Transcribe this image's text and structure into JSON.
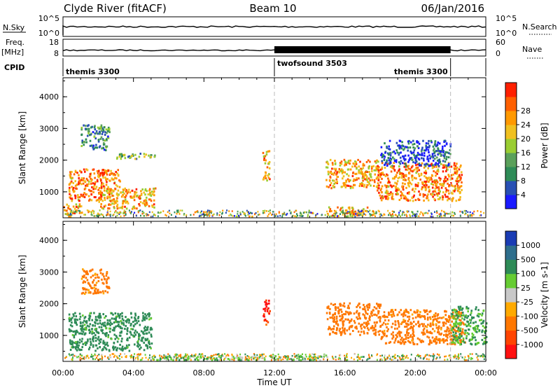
{
  "header": {
    "station": "Clyde River (fitACF)",
    "beam": "Beam 10",
    "date": "06/Jan/2016"
  },
  "strip_top": {
    "left_label": "N.Sky",
    "right_label": "N.Search",
    "left_ticks": [
      "10^5",
      "10^0"
    ],
    "right_ticks": [
      "10^5",
      "10^0"
    ]
  },
  "strip_freq": {
    "left_label_1": "Freq.",
    "left_label_2": "[MHz]",
    "left_ticks": [
      "18",
      "8"
    ],
    "right_label": "Nave",
    "right_ticks": [
      "60",
      "0"
    ]
  },
  "cpid": {
    "label": "CPID",
    "segments": [
      {
        "name": "themis 3300",
        "start_h": 0,
        "end_h": 12
      },
      {
        "name": "twofsound 3503",
        "start_h": 12,
        "end_h": 22
      },
      {
        "name": "themis 3300",
        "start_h": 22,
        "end_h": 24
      }
    ]
  },
  "chart_data": [
    {
      "type": "heatmap",
      "panel": "power",
      "xlabel": "Time UT",
      "ylabel": "Slant Range [km]",
      "xlim": [
        0,
        24
      ],
      "ylim": [
        180,
        4600
      ],
      "x_ticks": [
        "00:00",
        "04:00",
        "08:00",
        "12:00",
        "16:00",
        "20:00",
        "00:00"
      ],
      "y_ticks": [
        "1000",
        "2000",
        "3000",
        "4000"
      ],
      "colorbar": {
        "label": "Power [dB]",
        "ticks": [
          "4",
          "8",
          "12",
          "16",
          "20",
          "24",
          "28"
        ],
        "colors": [
          "#1a1aff",
          "#2850b4",
          "#2e8b57",
          "#5aa05a",
          "#9acd32",
          "#f0c020",
          "#ff9900",
          "#ff6000",
          "#ff2000"
        ]
      },
      "regions": [
        {
          "t0": 0.3,
          "t1": 3.2,
          "r0": 700,
          "r1": 1700,
          "value": 28
        },
        {
          "t0": 2.0,
          "t1": 5.2,
          "r0": 450,
          "r1": 1100,
          "value": 26
        },
        {
          "t0": 0.0,
          "t1": 1.0,
          "r0": 200,
          "r1": 600,
          "value": 26
        },
        {
          "t0": 1.0,
          "t1": 2.6,
          "r0": 2300,
          "r1": 3100,
          "value": 16
        },
        {
          "t0": 3.0,
          "t1": 5.2,
          "r0": 2000,
          "r1": 2200,
          "value": 18
        },
        {
          "t0": 11.3,
          "t1": 11.7,
          "r0": 1300,
          "r1": 2300,
          "value": 26
        },
        {
          "t0": 14.9,
          "t1": 17.9,
          "r0": 1100,
          "r1": 2000,
          "value": 26
        },
        {
          "t0": 17.8,
          "t1": 22.6,
          "r0": 700,
          "r1": 1900,
          "value": 28
        },
        {
          "t0": 15.0,
          "t1": 17.3,
          "r0": 200,
          "r1": 500,
          "value": 26
        },
        {
          "t0": 18.0,
          "t1": 22.0,
          "r0": 1800,
          "r1": 2600,
          "value": 12
        }
      ]
    },
    {
      "type": "heatmap",
      "panel": "velocity",
      "xlabel": "Time UT",
      "ylabel": "Slant Range [km]",
      "xlim": [
        0,
        24
      ],
      "ylim": [
        180,
        4600
      ],
      "x_ticks": [
        "00:00",
        "04:00",
        "08:00",
        "12:00",
        "16:00",
        "20:00",
        "00:00"
      ],
      "y_ticks": [
        "1000",
        "2000",
        "3000",
        "4000"
      ],
      "colorbar": {
        "label": "Velocity [m s-1]",
        "ticks": [
          "1000",
          "500",
          "100",
          "25",
          "-25",
          "-100",
          "-500",
          "-1000"
        ],
        "colors": [
          "#1a3cb4",
          "#2e6e8c",
          "#2e8b57",
          "#66cc33",
          "#c8c8c8",
          "#ffaa00",
          "#ff7700",
          "#ff4400",
          "#ff1010"
        ]
      },
      "regions": [
        {
          "t0": 0.3,
          "t1": 5.0,
          "r0": 500,
          "r1": 1700,
          "value": 200
        },
        {
          "t0": 1.0,
          "t1": 2.6,
          "r0": 2300,
          "r1": 3100,
          "value": -200
        },
        {
          "t0": 11.3,
          "t1": 11.7,
          "r0": 1300,
          "r1": 2100,
          "value": -1000
        },
        {
          "t0": 14.9,
          "t1": 18.0,
          "r0": 1000,
          "r1": 2000,
          "value": -300
        },
        {
          "t0": 18.0,
          "t1": 22.8,
          "r0": 700,
          "r1": 1800,
          "value": -200
        },
        {
          "t0": 22.0,
          "t1": 24.0,
          "r0": 700,
          "r1": 1900,
          "value": 100
        },
        {
          "t0": 5.0,
          "t1": 15.0,
          "r0": 200,
          "r1": 350,
          "value": 50
        }
      ]
    }
  ]
}
